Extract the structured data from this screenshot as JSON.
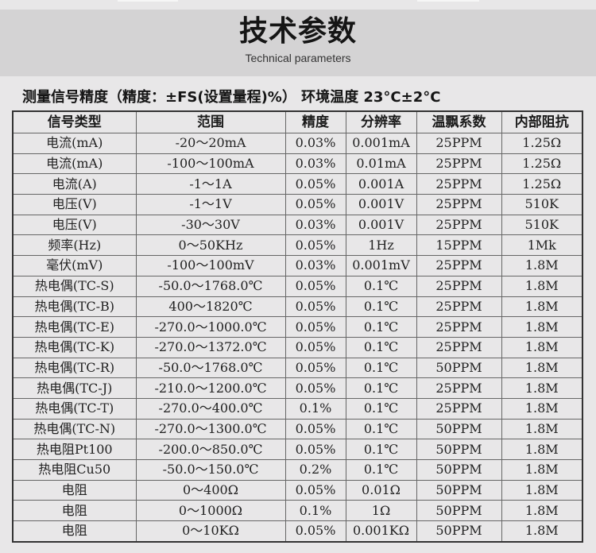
{
  "header": {
    "title": "技术参数",
    "subtitle": "Technical parameters"
  },
  "note": "测量信号精度（精度：±FS(设置量程)%） 环境温度 23°C±2°C",
  "table": {
    "columns": [
      "信号类型",
      "范围",
      "精度",
      "分辨率",
      "温飘系数",
      "内部阻抗"
    ],
    "rows": [
      [
        "电流(mA)",
        "-20～20mA",
        "0.03%",
        "0.001mA",
        "25PPM",
        "1.25Ω"
      ],
      [
        "电流(mA)",
        "-100～100mA",
        "0.03%",
        "0.01mA",
        "25PPM",
        "1.25Ω"
      ],
      [
        "电流(A)",
        "-1～1A",
        "0.05%",
        "0.001A",
        "25PPM",
        "1.25Ω"
      ],
      [
        "电压(V)",
        "-1～1V",
        "0.05%",
        "0.001V",
        "25PPM",
        "510K"
      ],
      [
        "电压(V)",
        "-30～30V",
        "0.03%",
        "0.001V",
        "25PPM",
        "510K"
      ],
      [
        "频率(Hz)",
        "0～50KHz",
        "0.05%",
        "1Hz",
        "15PPM",
        "1Mk"
      ],
      [
        "毫伏(mV)",
        "-100～100mV",
        "0.03%",
        "0.001mV",
        "25PPM",
        "1.8M"
      ],
      [
        "热电偶(TC-S)",
        "-50.0～1768.0℃",
        "0.05%",
        "0.1℃",
        "25PPM",
        "1.8M"
      ],
      [
        "热电偶(TC-B)",
        "400～1820℃",
        "0.05%",
        "0.1℃",
        "25PPM",
        "1.8M"
      ],
      [
        "热电偶(TC-E)",
        "-270.0～1000.0℃",
        "0.05%",
        "0.1℃",
        "25PPM",
        "1.8M"
      ],
      [
        "热电偶(TC-K)",
        "-270.0～1372.0℃",
        "0.05%",
        "0.1℃",
        "25PPM",
        "1.8M"
      ],
      [
        "热电偶(TC-R)",
        "-50.0～1768.0℃",
        "0.05%",
        "0.1℃",
        "50PPM",
        "1.8M"
      ],
      [
        "热电偶(TC-J)",
        "-210.0～1200.0℃",
        "0.05%",
        "0.1℃",
        "25PPM",
        "1.8M"
      ],
      [
        "热电偶(TC-T)",
        "-270.0～400.0℃",
        "0.1%",
        "0.1℃",
        "25PPM",
        "1.8M"
      ],
      [
        "热电偶(TC-N)",
        "-270.0～1300.0℃",
        "0.05%",
        "0.1℃",
        "50PPM",
        "1.8M"
      ],
      [
        "热电阻Pt100",
        "-200.0～850.0℃",
        "0.05%",
        "0.1℃",
        "50PPM",
        "1.8M"
      ],
      [
        "热电阻Cu50",
        "-50.0～150.0℃",
        "0.2%",
        "0.1℃",
        "50PPM",
        "1.8M"
      ],
      [
        "电阻",
        "0～400Ω",
        "0.05%",
        "0.01Ω",
        "50PPM",
        "1.8M"
      ],
      [
        "电阻",
        "0～1000Ω",
        "0.1%",
        "1Ω",
        "50PPM",
        "1.8M"
      ],
      [
        "电阻",
        "0～10KΩ",
        "0.05%",
        "0.001KΩ",
        "50PPM",
        "1.8M"
      ]
    ]
  }
}
